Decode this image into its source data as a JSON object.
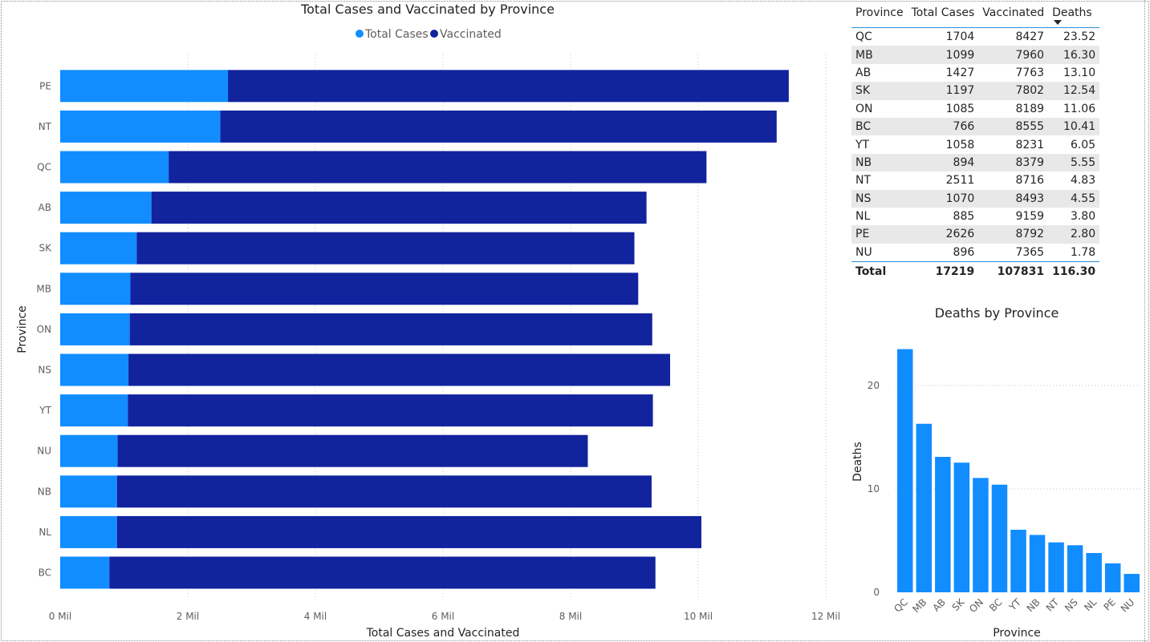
{
  "chart_data": [
    {
      "type": "bar",
      "orientation": "horizontal",
      "stacked": true,
      "title": "Total Cases and Vaccinated by Province",
      "xlabel": "Total Cases and Vaccinated",
      "ylabel": "Province",
      "xlim": [
        0,
        12
      ],
      "x_unit": "Mil",
      "x_ticks": [
        "0 Mil",
        "2 Mil",
        "4 Mil",
        "6 Mil",
        "8 Mil",
        "10 Mil",
        "12 Mil"
      ],
      "legend_position": "top-center",
      "categories": [
        "PE",
        "NT",
        "QC",
        "AB",
        "SK",
        "MB",
        "ON",
        "NS",
        "YT",
        "NU",
        "NB",
        "NL",
        "BC"
      ],
      "series": [
        {
          "name": "Total Cases",
          "color": "#118dff",
          "values": [
            2.63,
            2.51,
            1.7,
            1.43,
            1.2,
            1.1,
            1.09,
            1.07,
            1.06,
            0.9,
            0.89,
            0.89,
            0.77
          ]
        },
        {
          "name": "Vaccinated",
          "color": "#12239e",
          "values": [
            8.79,
            8.72,
            8.43,
            7.76,
            7.8,
            7.96,
            8.19,
            8.49,
            8.23,
            7.37,
            8.38,
            9.16,
            8.56
          ]
        }
      ],
      "grid": true
    },
    {
      "type": "bar",
      "title": "Deaths by Province",
      "xlabel": "Province",
      "ylabel": "Deaths",
      "ylim": [
        0,
        24
      ],
      "y_ticks": [
        0,
        10,
        20
      ],
      "categories": [
        "QC",
        "MB",
        "AB",
        "SK",
        "ON",
        "BC",
        "YT",
        "NB",
        "NT",
        "NS",
        "NL",
        "PE",
        "NU"
      ],
      "series": [
        {
          "color": "#118dff",
          "values": [
            23.52,
            16.3,
            13.1,
            12.54,
            11.06,
            10.41,
            6.05,
            5.55,
            4.83,
            4.55,
            3.8,
            2.8,
            1.78
          ]
        }
      ],
      "grid": true
    }
  ],
  "table": {
    "columns": [
      "Province",
      "Total Cases",
      "Vaccinated",
      "Deaths"
    ],
    "sorted_column": "Deaths",
    "rows": [
      [
        "QC",
        "1704",
        "8427",
        "23.52"
      ],
      [
        "MB",
        "1099",
        "7960",
        "16.30"
      ],
      [
        "AB",
        "1427",
        "7763",
        "13.10"
      ],
      [
        "SK",
        "1197",
        "7802",
        "12.54"
      ],
      [
        "ON",
        "1085",
        "8189",
        "11.06"
      ],
      [
        "BC",
        "766",
        "8555",
        "10.41"
      ],
      [
        "YT",
        "1058",
        "8231",
        "6.05"
      ],
      [
        "NB",
        "894",
        "8379",
        "5.55"
      ],
      [
        "NT",
        "2511",
        "8716",
        "4.83"
      ],
      [
        "NS",
        "1070",
        "8493",
        "4.55"
      ],
      [
        "NL",
        "885",
        "9159",
        "3.80"
      ],
      [
        "PE",
        "2626",
        "8792",
        "2.80"
      ],
      [
        "NU",
        "896",
        "7365",
        "1.78"
      ]
    ],
    "total": [
      "Total",
      "17219",
      "107831",
      "116.30"
    ]
  }
}
